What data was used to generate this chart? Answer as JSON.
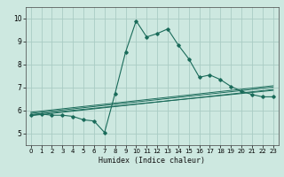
{
  "title": "",
  "xlabel": "Humidex (Indice chaleur)",
  "ylabel": "",
  "xlim": [
    -0.5,
    23.5
  ],
  "ylim": [
    4.5,
    10.5
  ],
  "xticks": [
    0,
    1,
    2,
    3,
    4,
    5,
    6,
    7,
    8,
    9,
    10,
    11,
    12,
    13,
    14,
    15,
    16,
    17,
    18,
    19,
    20,
    21,
    22,
    23
  ],
  "yticks": [
    5,
    6,
    7,
    8,
    9,
    10
  ],
  "bg_color": "#cde8e0",
  "grid_color": "#aaccC4",
  "line_color": "#1a6b5a",
  "main_x": [
    0,
    1,
    2,
    3,
    4,
    5,
    6,
    7,
    8,
    9,
    10,
    11,
    12,
    13,
    14,
    15,
    16,
    17,
    18,
    19,
    20,
    21,
    22,
    23
  ],
  "main_y": [
    5.8,
    5.85,
    5.8,
    5.8,
    5.75,
    5.6,
    5.55,
    5.05,
    6.75,
    8.55,
    9.9,
    9.2,
    9.35,
    9.55,
    8.85,
    8.25,
    7.45,
    7.55,
    7.35,
    7.05,
    6.85,
    6.7,
    6.6,
    6.6
  ],
  "line1_x": [
    0,
    23
  ],
  "line1_y": [
    5.78,
    6.92
  ],
  "line2_x": [
    0,
    23
  ],
  "line2_y": [
    5.83,
    6.88
  ],
  "line3_x": [
    0,
    23
  ],
  "line3_y": [
    5.88,
    7.02
  ],
  "line4_x": [
    0,
    23
  ],
  "line4_y": [
    5.93,
    7.08
  ]
}
